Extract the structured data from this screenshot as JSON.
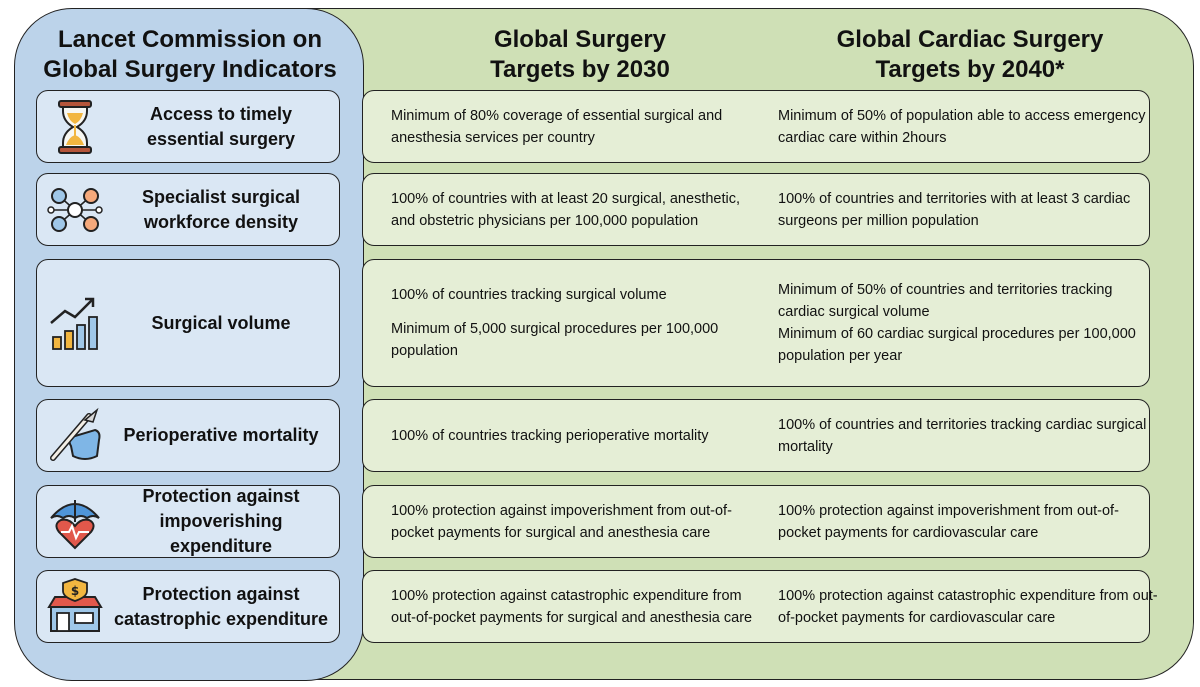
{
  "left_title": [
    "Lancet Commission on",
    "Global Surgery Indicators"
  ],
  "col1_title": [
    "Global Surgery",
    "Targets by 2030"
  ],
  "col2_title": [
    "Global Cardiac Surgery",
    "Targets by 2040*"
  ],
  "colors": {
    "blue_panel": "#bcd3ea",
    "green_panel": "#cfe0b6",
    "indicator_box": "#dae7f4",
    "target_box": "#e5eed6"
  },
  "rows": [
    {
      "icon": "hourglass-icon",
      "indicator": "Access to timely essential surgery",
      "surgery": [
        "Minimum of 80% coverage of essential surgical and anesthesia services per country"
      ],
      "cardiac": [
        "Minimum of 50% of population able to access emergency cardiac care within 2hours"
      ]
    },
    {
      "icon": "workforce-network-icon",
      "indicator": "Specialist surgical workforce density",
      "surgery": [
        "100% of countries with at least 20 surgical, anesthetic, and obstetric physicians per 100,000 population"
      ],
      "cardiac": [
        "100% of countries and territories with at least 3 cardiac surgeons per million population"
      ]
    },
    {
      "icon": "growth-chart-icon",
      "indicator": "Surgical volume",
      "surgery": [
        "100% of countries tracking surgical volume",
        "Minimum of 5,000 surgical procedures per 100,000 population"
      ],
      "cardiac": [
        "Minimum of 50% of countries and territories tracking cardiac surgical volume",
        "Minimum of 60 cardiac surgical procedures per 100,000 population per year"
      ]
    },
    {
      "icon": "scalpel-hand-icon",
      "indicator": "Perioperative mortality",
      "surgery": [
        "100% of countries tracking perioperative mortality"
      ],
      "cardiac": [
        "100% of countries and territories tracking cardiac surgical mortality"
      ]
    },
    {
      "icon": "umbrella-heart-icon",
      "indicator": "Protection against impoverishing expenditure",
      "surgery": [
        "100% protection against impoverishment from out-of-pocket payments for surgical and anesthesia care"
      ],
      "cardiac": [
        "100% protection against impoverishment from out-of-pocket payments for cardiovascular care"
      ]
    },
    {
      "icon": "money-shop-icon",
      "indicator": "Protection against catastrophic expenditure",
      "surgery": [
        "100% protection against catastrophic expenditure from out-of-pocket payments for surgical and anesthesia care"
      ],
      "cardiac": [
        "100% protection against catastrophic expenditure from out-of-pocket payments for cardiovascular care"
      ]
    }
  ]
}
